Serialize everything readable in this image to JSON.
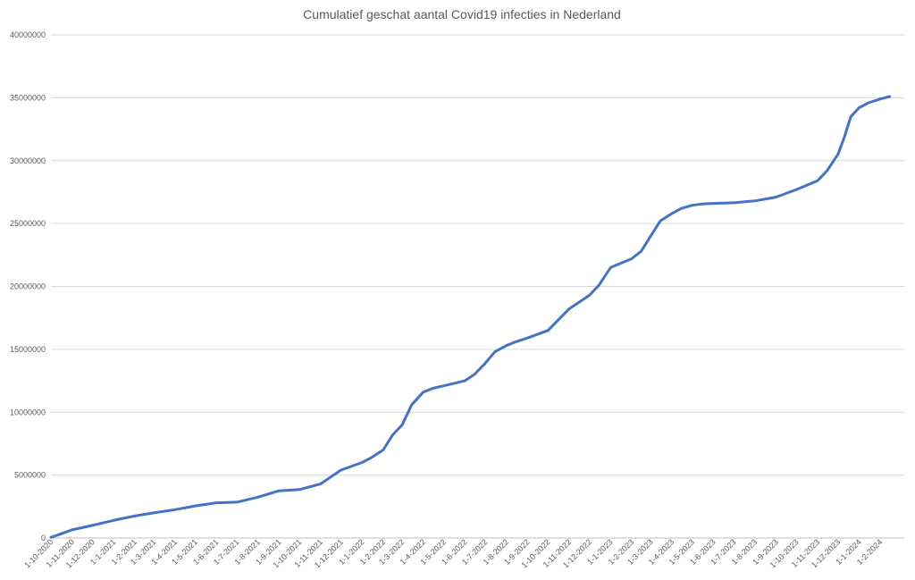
{
  "chart_data": {
    "type": "line",
    "title": "Cumulatief geschat aantal Covid19 infecties in Nederland",
    "xlabel": "",
    "ylabel": "",
    "ylim": [
      0,
      40000000
    ],
    "yticks": [
      "0",
      "5000000",
      "10000000",
      "15000000",
      "20000000",
      "25000000",
      "30000000",
      "35000000",
      "40000000"
    ],
    "xticks": [
      "1-10-2020",
      "1-11-2020",
      "1-12-2020",
      "1-1-2021",
      "1-2-2021",
      "1-3-2021",
      "1-4-2021",
      "1-5-2021",
      "1-6-2021",
      "1-7-2021",
      "1-8-2021",
      "1-9-2021",
      "1-10-2021",
      "1-11-2021",
      "1-12-2021",
      "1-1-2022",
      "1-2-2022",
      "1-3-2022",
      "1-4-2022",
      "1-5-2022",
      "1-6-2022",
      "1-7-2022",
      "1-8-2022",
      "1-9-2022",
      "1-10-2022",
      "1-11-2022",
      "1-12-2022",
      "1-1-2023",
      "1-2-2023",
      "1-3-2023",
      "1-4-2023",
      "1-5-2023",
      "1-6-2023",
      "1-7-2023",
      "1-8-2023",
      "1-9-2023",
      "1-10-2023",
      "1-11-2023",
      "1-12-2023",
      "1-1-2024",
      "1-2-2024"
    ],
    "grid": true,
    "color": "#4472c4",
    "series": [
      {
        "x": [
          "1-10-2020",
          "1-11-2020",
          "1-12-2020",
          "1-1-2021",
          "1-2-2021",
          "1-3-2021",
          "1-4-2021",
          "1-5-2021",
          "1-6-2021",
          "1-7-2021",
          "1-8-2021",
          "1-9-2021",
          "1-10-2021",
          "1-11-2021",
          "1-12-2021",
          "1-1-2022",
          "15-1-2022",
          "1-2-2022",
          "15-2-2022",
          "1-3-2022",
          "15-3-2022",
          "1-4-2022",
          "15-4-2022",
          "1-5-2022",
          "1-6-2022",
          "15-6-2022",
          "1-7-2022",
          "15-7-2022",
          "1-8-2022",
          "15-8-2022",
          "1-9-2022",
          "1-10-2022",
          "1-11-2022",
          "1-12-2022",
          "15-12-2022",
          "1-1-2023",
          "1-2-2023",
          "15-2-2023",
          "1-3-2023",
          "15-3-2023",
          "1-4-2023",
          "15-4-2023",
          "1-5-2023",
          "15-5-2023",
          "1-6-2023",
          "1-7-2023",
          "1-8-2023",
          "1-9-2023",
          "1-10-2023",
          "1-11-2023",
          "15-11-2023",
          "1-12-2023",
          "10-12-2023",
          "20-12-2023",
          "1-1-2024",
          "15-1-2024",
          "1-2-2024",
          "15-2-2024"
        ],
        "values": [
          50000,
          650000,
          1000000,
          1400000,
          1750000,
          2000000,
          2250000,
          2550000,
          2800000,
          2850000,
          3250000,
          3750000,
          3850000,
          4300000,
          5400000,
          6000000,
          6400000,
          7000000,
          8200000,
          9000000,
          10600000,
          11600000,
          11900000,
          12100000,
          12500000,
          13000000,
          13900000,
          14800000,
          15300000,
          15600000,
          15900000,
          16500000,
          18200000,
          19300000,
          20100000,
          21500000,
          22200000,
          22800000,
          24000000,
          25200000,
          25800000,
          26200000,
          26450000,
          26550000,
          26600000,
          26650000,
          26800000,
          27100000,
          27700000,
          28400000,
          29200000,
          30500000,
          31800000,
          33500000,
          34200000,
          34600000,
          34900000,
          35100000
        ]
      }
    ]
  }
}
